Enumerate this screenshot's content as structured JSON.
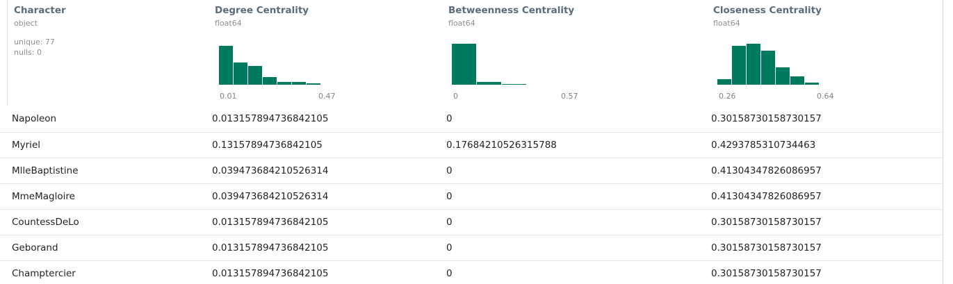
{
  "table": {
    "columns": [
      {
        "name": "Character",
        "dtype": "object",
        "unique_label": "unique: 77",
        "nulls_label": "nulls: 0"
      },
      {
        "name": "Degree Centrality",
        "dtype": "float64",
        "axis_min": "0.01",
        "axis_max": "0.47",
        "histogram": [
          0.95,
          0.55,
          0.45,
          0.18,
          0.06,
          0.06,
          0.03
        ]
      },
      {
        "name": "Betweenness Centrality",
        "dtype": "float64",
        "axis_min": "0",
        "axis_max": "0.57",
        "histogram": [
          1.0,
          0.06,
          0.02
        ]
      },
      {
        "name": "Closeness Centrality",
        "dtype": "float64",
        "axis_min": "0.26",
        "axis_max": "0.64",
        "histogram": [
          0.14,
          0.95,
          1.0,
          0.83,
          0.42,
          0.2,
          0.05
        ]
      }
    ],
    "rows": [
      [
        "Napoleon",
        "0.013157894736842105",
        "0",
        "0.30158730158730157"
      ],
      [
        "Myriel",
        "0.13157894736842105",
        "0.17684210526315788",
        "0.4293785310734463"
      ],
      [
        "MlleBaptistine",
        "0.039473684210526314",
        "0",
        "0.41304347826086957"
      ],
      [
        "MmeMagloire",
        "0.039473684210526314",
        "0",
        "0.41304347826086957"
      ],
      [
        "CountessDeLo",
        "0.013157894736842105",
        "0",
        "0.30158730158730157"
      ],
      [
        "Geborand",
        "0.013157894736842105",
        "0",
        "0.30158730158730157"
      ],
      [
        "Champtercier",
        "0.013157894736842105",
        "0",
        "0.30158730158730157"
      ]
    ]
  },
  "colors": {
    "bar": "#007a5e",
    "header_text": "#5a6b7b",
    "meta_text": "#8a8f94"
  }
}
